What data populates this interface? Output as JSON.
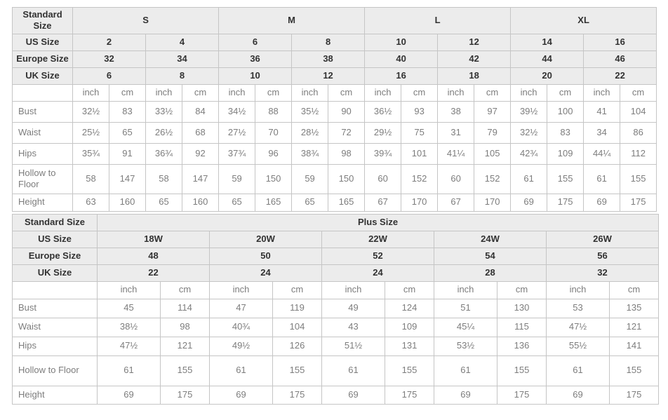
{
  "units": {
    "inch": "inch",
    "cm": "cm"
  },
  "colors": {
    "header_bg": "#ececec",
    "border": "#c5c5c5",
    "header_text": "#323232",
    "data_text": "#7d7d7d",
    "page_bg": "#ffffff"
  },
  "tables": [
    {
      "name": "standard-size-table",
      "corner_label": "Standard Size",
      "columns": 16,
      "size_groups": [
        {
          "label": "S",
          "span": 4
        },
        {
          "label": "M",
          "span": 4
        },
        {
          "label": "L",
          "span": 4
        },
        {
          "label": "XL",
          "span": 4
        }
      ],
      "size_rows": [
        {
          "label": "US Size",
          "values": [
            "2",
            "4",
            "6",
            "8",
            "10",
            "12",
            "14",
            "16"
          ]
        },
        {
          "label": "Europe Size",
          "values": [
            "32",
            "34",
            "36",
            "38",
            "40",
            "42",
            "44",
            "46"
          ]
        },
        {
          "label": "UK Size",
          "values": [
            "6",
            "8",
            "10",
            "12",
            "16",
            "18",
            "20",
            "22"
          ]
        }
      ],
      "measure_rows": [
        {
          "label": "Bust",
          "tall": false,
          "short": false,
          "values": [
            "32½",
            "83",
            "33½",
            "84",
            "34½",
            "88",
            "35½",
            "90",
            "36½",
            "93",
            "38",
            "97",
            "39½",
            "100",
            "41",
            "104"
          ]
        },
        {
          "label": "Waist",
          "tall": false,
          "short": false,
          "values": [
            "25½",
            "65",
            "26½",
            "68",
            "27½",
            "70",
            "28½",
            "72",
            "29½",
            "75",
            "31",
            "79",
            "32½",
            "83",
            "34",
            "86"
          ]
        },
        {
          "label": "Hips",
          "tall": false,
          "short": false,
          "values": [
            "35¾",
            "91",
            "36¾",
            "92",
            "37¾",
            "96",
            "38¾",
            "98",
            "39¾",
            "101",
            "41¼",
            "105",
            "42¾",
            "109",
            "44¼",
            "112"
          ]
        },
        {
          "label": "Hollow to Floor",
          "tall": true,
          "short": false,
          "values": [
            "58",
            "147",
            "58",
            "147",
            "59",
            "150",
            "59",
            "150",
            "60",
            "152",
            "60",
            "152",
            "61",
            "155",
            "61",
            "155"
          ]
        },
        {
          "label": "Height",
          "tall": false,
          "short": true,
          "values": [
            "63",
            "160",
            "65",
            "160",
            "65",
            "165",
            "65",
            "165",
            "67",
            "170",
            "67",
            "170",
            "69",
            "175",
            "69",
            "175"
          ]
        }
      ]
    },
    {
      "name": "plus-size-table",
      "corner_label": "Standard Size",
      "columns": 10,
      "size_groups": [
        {
          "label": "Plus Size",
          "span": 10
        }
      ],
      "size_rows": [
        {
          "label": "US Size",
          "values": [
            "18W",
            "20W",
            "22W",
            "24W",
            "26W"
          ]
        },
        {
          "label": "Europe Size",
          "values": [
            "48",
            "50",
            "52",
            "54",
            "56"
          ]
        },
        {
          "label": "UK Size",
          "values": [
            "22",
            "24",
            "24",
            "28",
            "32"
          ]
        }
      ],
      "measure_rows": [
        {
          "label": "Bust",
          "tall": false,
          "short": false,
          "values": [
            "45",
            "114",
            "47",
            "119",
            "49",
            "124",
            "51",
            "130",
            "53",
            "135"
          ]
        },
        {
          "label": "Waist",
          "tall": false,
          "short": false,
          "values": [
            "38½",
            "98",
            "40¾",
            "104",
            "43",
            "109",
            "45¼",
            "115",
            "47½",
            "121"
          ]
        },
        {
          "label": "Hips",
          "tall": false,
          "short": false,
          "values": [
            "47½",
            "121",
            "49½",
            "126",
            "51½",
            "131",
            "53½",
            "136",
            "55½",
            "141"
          ]
        },
        {
          "label": "Hollow to Floor",
          "tall": true,
          "short": false,
          "values": [
            "61",
            "155",
            "61",
            "155",
            "61",
            "155",
            "61",
            "155",
            "61",
            "155"
          ]
        },
        {
          "label": "Height",
          "tall": false,
          "short": true,
          "values": [
            "69",
            "175",
            "69",
            "175",
            "69",
            "175",
            "69",
            "175",
            "69",
            "175"
          ]
        }
      ]
    }
  ]
}
